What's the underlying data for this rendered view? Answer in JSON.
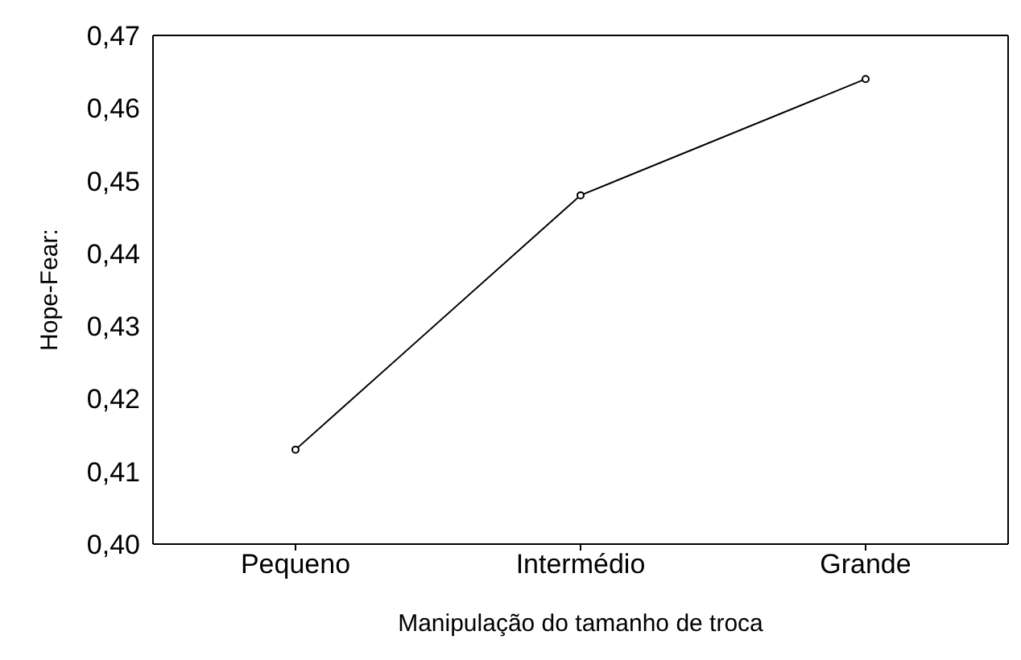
{
  "chart_data": {
    "type": "line",
    "xlabel": "Manipulação do tamanho de troca",
    "ylabel": "Hope-Fear:",
    "categories": [
      "Pequeno",
      "Intermédio",
      "Grande"
    ],
    "series": [
      {
        "color": "#000000",
        "values": [
          0.413,
          0.448,
          0.464
        ]
      }
    ],
    "ylim": [
      0.4,
      0.47
    ],
    "yticks": [
      {
        "value": 0.4,
        "label": "0,40"
      },
      {
        "value": 0.41,
        "label": "0,41"
      },
      {
        "value": 0.42,
        "label": "0,42"
      },
      {
        "value": 0.43,
        "label": "0,43"
      },
      {
        "value": 0.44,
        "label": "0,44"
      },
      {
        "value": 0.45,
        "label": "0,45"
      },
      {
        "value": 0.46,
        "label": "0,46"
      },
      {
        "value": 0.47,
        "label": "0,47"
      }
    ],
    "marker": "circle",
    "line_style": "solid",
    "legend": false
  }
}
